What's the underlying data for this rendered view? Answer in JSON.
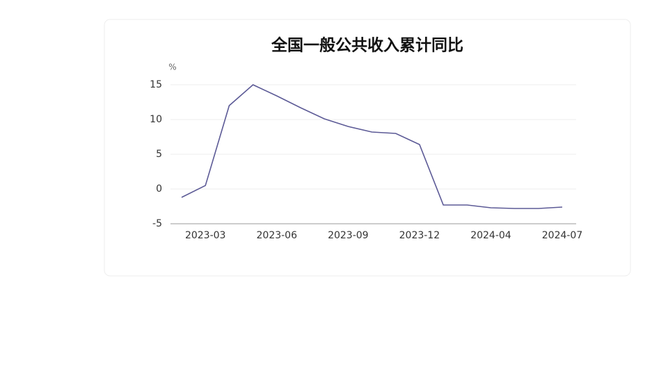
{
  "chart_data": {
    "type": "line",
    "title": "全国一般公共收入累计同比",
    "y_unit": "%",
    "categories": [
      null,
      "2023-03",
      null,
      null,
      "2023-06",
      null,
      null,
      "2023-09",
      null,
      null,
      "2023-12",
      null,
      null,
      "2024-04",
      null,
      null,
      "2024-07"
    ],
    "series": [
      {
        "name": "全国一般公共收入累计同比",
        "color": "#5c5a96",
        "values": [
          -1.2,
          0.5,
          12.0,
          15.0,
          13.4,
          11.7,
          10.1,
          9.0,
          8.2,
          8.0,
          6.4,
          -2.3,
          -2.3,
          -2.7,
          -2.8,
          -2.8,
          -2.6
        ]
      }
    ],
    "ylim": [
      -5,
      15
    ],
    "yticks": [
      -5,
      0,
      5,
      10,
      15
    ],
    "grid": true
  }
}
